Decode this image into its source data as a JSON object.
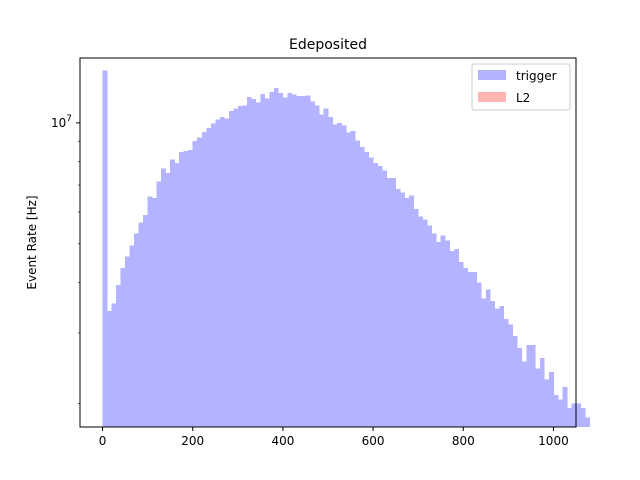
{
  "chart_data": {
    "type": "bar",
    "subtype": "histogram",
    "title": "Edeposited",
    "xlabel": "",
    "ylabel": "Event Rate [Hz]",
    "y_scale": "log",
    "xlim": [
      -50,
      1050
    ],
    "ylim": [
      1750000.0,
      14500000.0
    ],
    "x_ticks": [
      0,
      200,
      400,
      600,
      800,
      1000
    ],
    "x_tick_labels": [
      "0",
      "200",
      "400",
      "600",
      "800",
      "1000"
    ],
    "y_major_ticks": [
      10000000
    ],
    "y_tick_label": {
      "base": "10",
      "exponent": "7"
    },
    "legend_position": "top-right",
    "bin_start": 0,
    "bin_width": 10,
    "series": [
      {
        "name": "trigger",
        "color": "#b3b3ff",
        "values": [
          13500000,
          3400000,
          3550000,
          3950000,
          4350000,
          4650000,
          4950000,
          5300000,
          5650000,
          5900000,
          6550000,
          6500000,
          7150000,
          7700000,
          7500000,
          8100000,
          7950000,
          8450000,
          8500000,
          8550000,
          9000000,
          9200000,
          9500000,
          9700000,
          9950000,
          10200000,
          10350000,
          10250000,
          10700000,
          10850000,
          11000000,
          11050000,
          11600000,
          11450000,
          11250000,
          11800000,
          11500000,
          11950000,
          12200000,
          11850000,
          11550000,
          11850000,
          11750000,
          11650000,
          11650000,
          11700000,
          11300000,
          11050000,
          10500000,
          10850000,
          10350000,
          9900000,
          10000000,
          9850000,
          9450000,
          9550000,
          9050000,
          8700000,
          8450000,
          8200000,
          7950000,
          7800000,
          7600000,
          7300000,
          7300000,
          6850000,
          6700000,
          6500000,
          6600000,
          6100000,
          5850000,
          5750000,
          5550000,
          5300000,
          5050000,
          5250000,
          5100000,
          4800000,
          4850000,
          4500000,
          4350000,
          4250000,
          4250000,
          4000000,
          3650000,
          3850000,
          3600000,
          3450000,
          3500000,
          3250000,
          3150000,
          2950000,
          2750000,
          2550000,
          2800000,
          2800000,
          2450000,
          2600000,
          2300000,
          2400000,
          2100000,
          2050000,
          2200000,
          1950000,
          2000000,
          2000000,
          1950000,
          1850000,
          1650000,
          1700000
        ]
      },
      {
        "name": "L2",
        "color": "#ffb3b3",
        "values": []
      }
    ]
  }
}
